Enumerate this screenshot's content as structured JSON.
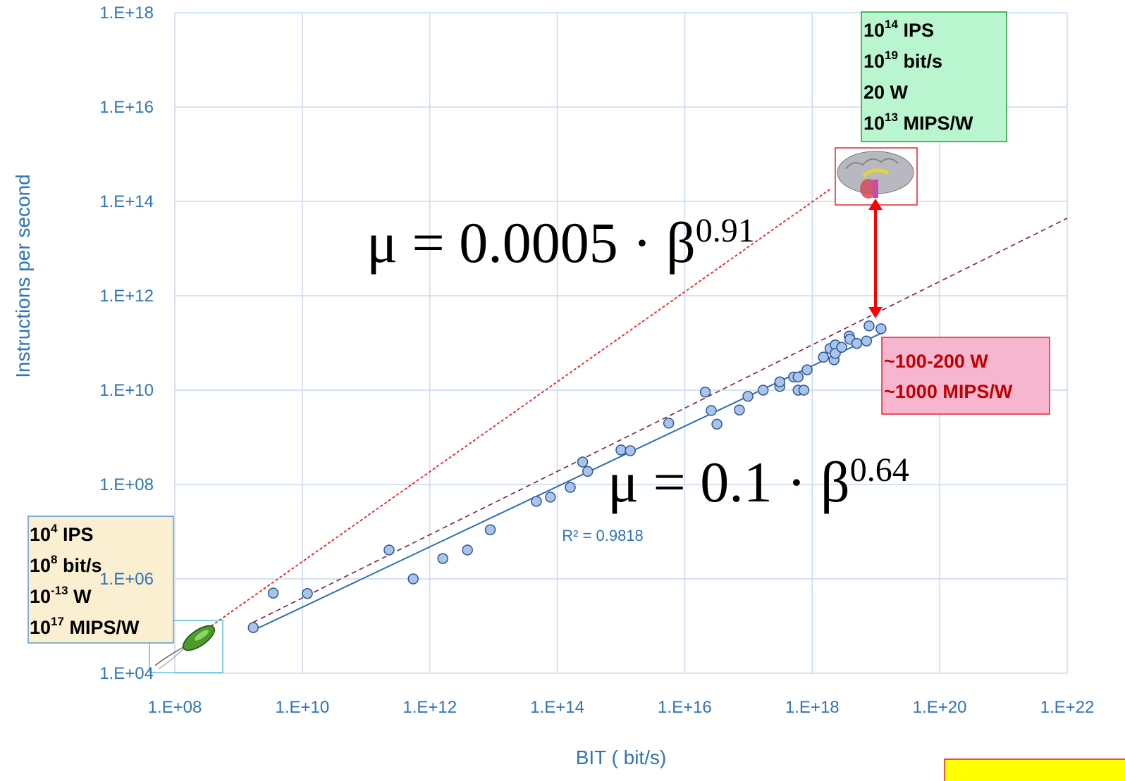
{
  "chart_data": {
    "type": "scatter",
    "xlabel": "BIT ( bit/s)",
    "ylabel": "Instructions per second",
    "xscale": "log",
    "yscale": "log",
    "xlim": [
      100000000.0,
      1e+22
    ],
    "ylim": [
      10000.0,
      1e+18
    ],
    "xticks": [
      {
        "value": 100000000.0,
        "label": "1.E+08"
      },
      {
        "value": 10000000000.0,
        "label": "1.E+10"
      },
      {
        "value": 1000000000000.0,
        "label": "1.E+12"
      },
      {
        "value": 100000000000000.0,
        "label": "1.E+14"
      },
      {
        "value": 1e+16,
        "label": "1.E+16"
      },
      {
        "value": 1e+18,
        "label": "1.E+18"
      },
      {
        "value": 1e+20,
        "label": "1.E+20"
      },
      {
        "value": 1e+22,
        "label": "1.E+22"
      }
    ],
    "yticks": [
      {
        "value": 10000.0,
        "label": "1.E+04"
      },
      {
        "value": 1000000.0,
        "label": "1.E+06"
      },
      {
        "value": 100000000.0,
        "label": "1.E+08"
      },
      {
        "value": 10000000000.0,
        "label": "1.E+10"
      },
      {
        "value": 1000000000000.0,
        "label": "1.E+12"
      },
      {
        "value": 100000000000000.0,
        "label": "1.E+14"
      },
      {
        "value": 1e+16,
        "label": "1.E+16"
      },
      {
        "value": 1e+18,
        "label": "1.E+18"
      }
    ],
    "grid": true,
    "series": [
      {
        "color": "#a9c4eb",
        "edge_color": "#2f5597",
        "x": [
          1700000000.0,
          3500000000.0,
          12000000000.0,
          230000000000.0,
          550000000000.0,
          1600000000000.0,
          3900000000000.0,
          8900000000000.0,
          47000000000000.0,
          78000000000000.0,
          160000000000000.0,
          250000000000000.0,
          300000000000000.0,
          1000000000000000.0,
          1400000000000000.0,
          5600000000000000.0,
          2.1e+16,
          2.6e+16,
          3.2e+16,
          7.2e+16,
          9.8e+16,
          1.7e+17,
          3.1e+17,
          3.1e+17,
          5.1e+17,
          6e+17,
          6e+17,
          7.4e+17,
          8.3e+17,
          1.5e+18,
          1.9e+18,
          2.3e+18,
          2.2e+18,
          2.3e+18,
          2.9e+18,
          3.8e+18,
          3.9e+18,
          5e+18,
          7.1e+18,
          7.8e+18,
          1.2e+19
        ],
        "values": [
          93000.0,
          500000.0,
          490000.0,
          4100000.0,
          1000000.0,
          2700000.0,
          4100000.0,
          11000000.0,
          44000000.0,
          54000000.0,
          87000000.0,
          300000000.0,
          190000000.0,
          540000000.0,
          520000000.0,
          2000000000.0,
          9100000000.0,
          3700000000.0,
          1900000000.0,
          3800000000.0,
          7400000000.0,
          10000000000.0,
          12000000000.0,
          15000000000.0,
          19000000000.0,
          10000000000.0,
          19000000000.0,
          10000000000.0,
          27000000000.0,
          50000000000.0,
          76000000000.0,
          91000000000.0,
          44000000000.0,
          60000000000.0,
          81000000000.0,
          140000000000.0,
          120000000000.0,
          98000000000.0,
          110000000000.0,
          230000000000.0,
          200000000000.0
        ]
      }
    ],
    "lines": [
      {
        "color": "#2e6fb0",
        "style": "solid",
        "x": [
          1700000000.0,
          1.2e+19
        ],
        "values": [
          81000.0,
          160000000000.0
        ]
      },
      {
        "color": "#7b1f3a",
        "style": "dashed",
        "x": [
          1700000000.0,
          1e+22
        ],
        "values": [
          120000.0,
          44000000000000.0
        ]
      },
      {
        "color": "#ff0000",
        "style": "dotted",
        "x": [
          370000000.0,
          2e+18
        ],
        "values": [
          100000.0,
          190000000000000.0
        ]
      }
    ],
    "equations": [
      {
        "text": "μ = 0.0005 · β",
        "sup": "0.91"
      },
      {
        "text": "μ = 0.1 · β",
        "sup": "0.64"
      }
    ],
    "r_squared": "R² = 0.9818",
    "boxes": [
      {
        "fill": "#fbefd1",
        "border": "#5b9bd5",
        "text_color": "#000000",
        "lines": [
          {
            "base": "10",
            "sup": "4",
            "text": " IPS"
          },
          {
            "base": "10",
            "sup": "8",
            "text": " bit/s"
          },
          {
            "base": "10",
            "sup": "-13",
            "text": " W"
          },
          {
            "base": "10",
            "sup": "17",
            "text": " MIPS/W"
          }
        ]
      },
      {
        "fill": "#b9f5cf",
        "border": "#1f9e3a",
        "text_color": "#000000",
        "lines": [
          {
            "base": "10",
            "sup": "14",
            "text": " IPS"
          },
          {
            "base": "10",
            "sup": "19",
            "text": " bit/s"
          },
          {
            "text": "20 W"
          },
          {
            "base": "10",
            "sup": "13",
            "text": " MIPS/W"
          }
        ]
      },
      {
        "fill": "#f7b6cf",
        "border": "#e8202a",
        "text_color": "#c00000",
        "lines": [
          {
            "text": "~100-200 W"
          },
          {
            "text": "~1000 MIPS/W"
          }
        ]
      }
    ]
  }
}
